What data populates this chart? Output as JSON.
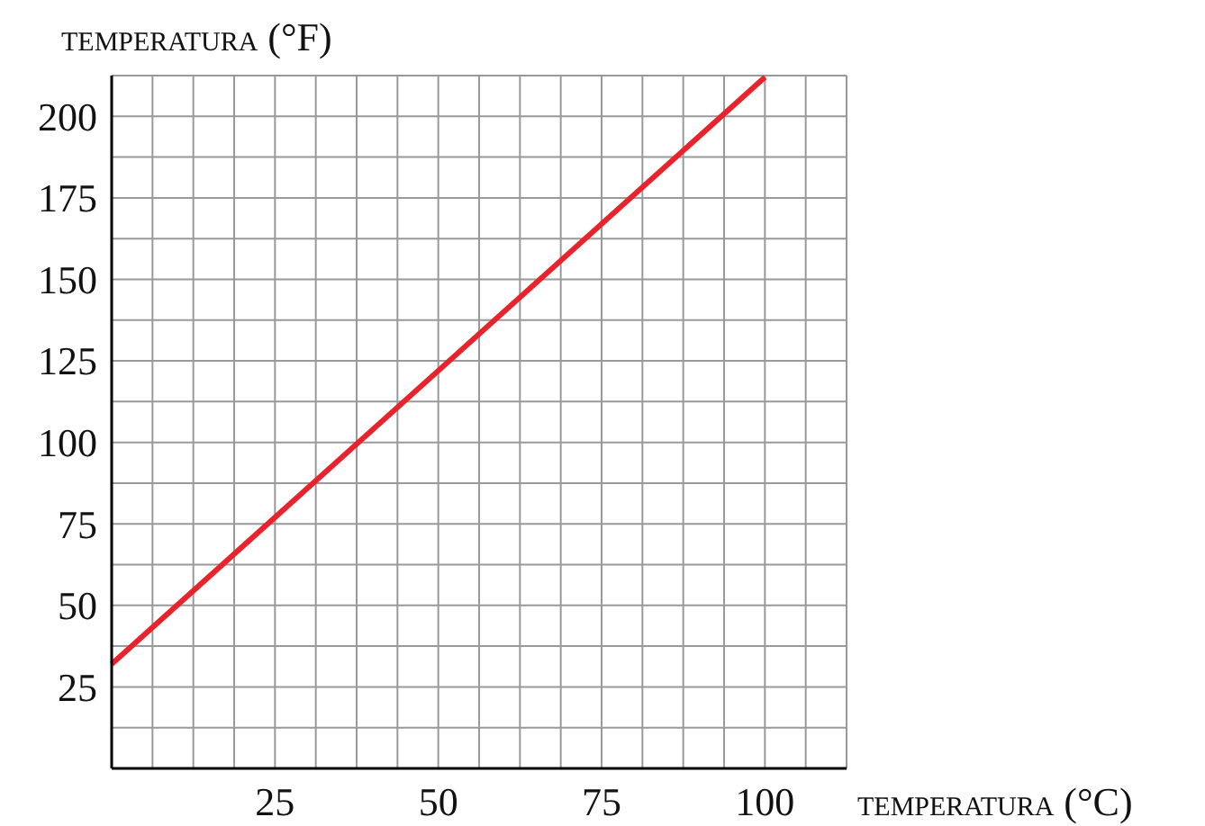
{
  "chart_data": {
    "type": "line",
    "xlabel": "temperatura (°C)",
    "ylabel": "temperatura (°F)",
    "series": [
      {
        "color": "#e8232b",
        "x": [
          0,
          100
        ],
        "values": [
          32,
          212
        ]
      }
    ],
    "xlim": [
      0,
      112.5
    ],
    "ylim": [
      0,
      212.5
    ],
    "xticks": [
      {
        "value": 6.25,
        "label": null
      },
      {
        "value": 12.5,
        "label": null
      },
      {
        "value": 18.75,
        "label": null
      },
      25,
      {
        "value": 31.25,
        "label": null
      },
      {
        "value": 37.5,
        "label": null
      },
      {
        "value": 43.75,
        "label": null
      },
      50,
      {
        "value": 56.25,
        "label": null
      },
      {
        "value": 62.5,
        "label": null
      },
      {
        "value": 68.75,
        "label": null
      },
      75,
      {
        "value": 81.25,
        "label": null
      },
      {
        "value": 87.5,
        "label": null
      },
      {
        "value": 93.75,
        "label": null
      },
      100,
      {
        "value": 106.25,
        "label": null
      },
      {
        "value": 112.5,
        "label": null
      }
    ],
    "yticks": [
      {
        "value": 12.5,
        "label": null
      },
      25,
      {
        "value": 37.5,
        "label": null
      },
      50,
      {
        "value": 62.5,
        "label": null
      },
      75,
      {
        "value": 87.5,
        "label": null
      },
      100,
      {
        "value": 112.5,
        "label": null
      },
      125,
      {
        "value": 137.5,
        "label": null
      },
      150,
      {
        "value": 162.5,
        "label": null
      },
      175,
      {
        "value": 187.5,
        "label": null
      },
      200,
      {
        "value": 212.5,
        "label": null
      }
    ],
    "grid": true,
    "marker": "none",
    "line_style": "solid"
  }
}
